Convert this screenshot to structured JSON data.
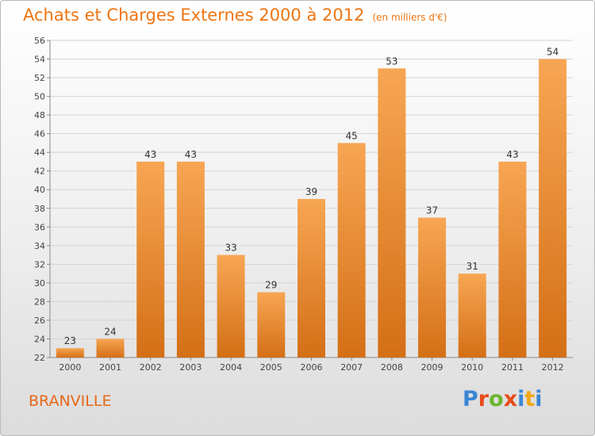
{
  "title": "Achats et Charges Externes 2000 à 2012",
  "subtitle": "(en milliers d'€)",
  "town": "BRANVILLE",
  "logo": {
    "letters": [
      "P",
      "r",
      "o",
      "x",
      "i",
      "t",
      "i"
    ],
    "colors": [
      "#3a86d6",
      "#e84b1a",
      "#6ab52d",
      "#e84b1a",
      "#3a86d6",
      "#f2a716",
      "#3a86d6"
    ]
  },
  "colors": {
    "bar_top": "#f7a653",
    "bar_bottom": "#d46f16",
    "accent": "#ee7511"
  },
  "chart_data": {
    "type": "bar",
    "categories": [
      "2000",
      "2001",
      "2002",
      "2003",
      "2004",
      "2005",
      "2006",
      "2007",
      "2008",
      "2009",
      "2010",
      "2011",
      "2012"
    ],
    "values": [
      23,
      24,
      43,
      43,
      33,
      29,
      39,
      45,
      53,
      37,
      31,
      43,
      54
    ],
    "ylim": [
      22,
      56
    ],
    "yticks": [
      22,
      24,
      26,
      28,
      30,
      32,
      34,
      36,
      38,
      40,
      42,
      44,
      46,
      48,
      50,
      52,
      54,
      56
    ],
    "grid": true
  }
}
